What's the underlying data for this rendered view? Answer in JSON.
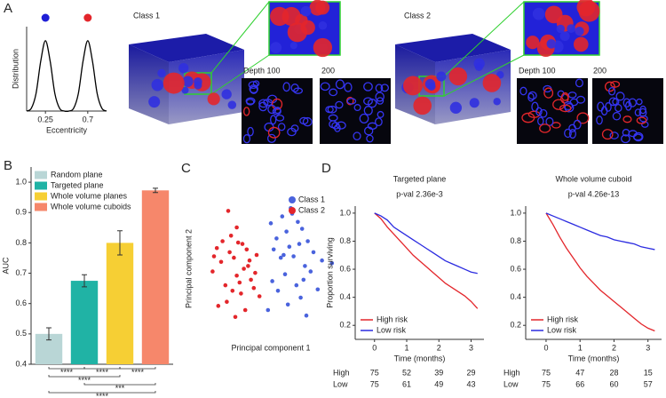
{
  "panel_labels": [
    "A",
    "B",
    "C",
    "D"
  ],
  "panel_a": {
    "classes": [
      {
        "title": "Class 1",
        "depths": [
          "Depth 100",
          "200"
        ]
      },
      {
        "title": "Class 2",
        "depths": [
          "Depth 100",
          "200"
        ]
      }
    ]
  },
  "chart_data": [
    {
      "type": "line",
      "smooth": true,
      "xlabel": "Eccentricity",
      "ylabel": "Distribution",
      "x": [
        0.05,
        0.1,
        0.15,
        0.2,
        0.25,
        0.3,
        0.35,
        0.4,
        0.45,
        0.5,
        0.55,
        0.6,
        0.65,
        0.7,
        0.75,
        0.8,
        0.85,
        0.9
      ],
      "series": [
        {
          "color": "#000000",
          "values": [
            0,
            0.04,
            0.25,
            0.71,
            1,
            0.71,
            0.25,
            0.04,
            0,
            0,
            0.04,
            0.25,
            0.71,
            1,
            0.71,
            0.25,
            0.04,
            0
          ]
        }
      ],
      "peak_markers": [
        {
          "x": 0.25,
          "color": "#1f1fd6"
        },
        {
          "x": 0.7,
          "color": "#e3262b"
        }
      ],
      "xlim": [
        0.05,
        0.9
      ],
      "ylim": [
        0,
        1.2
      ],
      "xticks": [
        0.25,
        0.7
      ]
    },
    {
      "type": "bar",
      "ylabel": "AUC",
      "categories": [
        "Random plane",
        "Targeted plane",
        "Whole volume planes",
        "Whole volume cuboids"
      ],
      "values": [
        0.5,
        0.675,
        0.8,
        0.973
      ],
      "errors": [
        0.02,
        0.02,
        0.04,
        0.007
      ],
      "colors": [
        "#b9d6d6",
        "#20b3a5",
        "#f6cf34",
        "#f6876b"
      ],
      "ylim": [
        0.4,
        1.05
      ],
      "yticks": [
        0.4,
        0.5,
        0.6,
        0.7,
        0.8,
        0.9,
        {
          "value": 1,
          "label": "1.0"
        }
      ],
      "significance": [
        {
          "pair": [
            0,
            1
          ],
          "label": "****"
        },
        {
          "pair": [
            1,
            2
          ],
          "label": "****"
        },
        {
          "pair": [
            2,
            3
          ],
          "label": "****"
        },
        {
          "pair": [
            0,
            2
          ],
          "label": "****"
        },
        {
          "pair": [
            1,
            3
          ],
          "label": "***"
        },
        {
          "pair": [
            0,
            3
          ],
          "label": "****"
        }
      ]
    },
    {
      "type": "scatter",
      "xlabel": "Principal component 1",
      "ylabel": "Principal component 2",
      "xlim": [
        0,
        10
      ],
      "ylim": [
        0,
        10
      ],
      "legend": "upper right",
      "series": [
        {
          "name": "Class 1",
          "color": "#4a63dd",
          "x": [
            5.0,
            5.8,
            6.5,
            7.2,
            5.4,
            6.1,
            6.9,
            7.6,
            5.2,
            6.3,
            7.0,
            8.0,
            5.7,
            6.6,
            7.4,
            8.6,
            6.0,
            5.1,
            7.8,
            6.8,
            5.5,
            7.1,
            8.3,
            6.2,
            4.8,
            7.5,
            9.3,
            6.4,
            5.9,
            7.3
          ],
          "values": [
            8.3,
            8.8,
            9.0,
            7.9,
            7.2,
            7.7,
            8.4,
            7.0,
            6.4,
            6.6,
            6.8,
            6.2,
            5.8,
            5.9,
            5.2,
            5.6,
            4.6,
            4.1,
            4.8,
            3.8,
            3.4,
            2.9,
            3.5,
            2.4,
            2.0,
            1.6,
            5.4,
            9.4,
            6.0,
            4.2
          ]
        },
        {
          "name": "Class 2",
          "color": "#e3262b",
          "x": [
            2.1,
            1.5,
            3.0,
            2.6,
            1.8,
            3.4,
            2.2,
            4.0,
            1.2,
            2.9,
            3.6,
            2.4,
            1.9,
            3.2,
            2.7,
            0.9,
            3.8,
            2.0,
            3.1,
            2.5,
            1.6,
            3.5,
            2.8,
            4.2,
            1.3,
            2.3,
            3.3,
            1.0,
            2.6,
            3.9
          ],
          "values": [
            6.2,
            5.5,
            6.8,
            4.5,
            3.8,
            5.2,
            7.4,
            6.0,
            6.5,
            3.2,
            4.2,
            5.8,
            2.6,
            2.0,
            6.9,
            4.8,
            3.6,
            9.2,
            5.0,
            1.5,
            7.0,
            5.6,
            4.0,
            3.0,
            2.3,
            3.4,
            6.4,
            5.9,
            8.0,
            4.7
          ]
        }
      ]
    },
    {
      "type": "line",
      "title": "Targeted plane",
      "subtitle": "p-val 2.36e-3",
      "xlabel": "Time (months)",
      "ylabel": "Proportion surviving",
      "legend": "lower left",
      "x": [
        0,
        0.2,
        0.4,
        0.6,
        0.8,
        1,
        1.2,
        1.4,
        1.6,
        1.8,
        2,
        2.2,
        2.4,
        2.6,
        2.8,
        3,
        3.2
      ],
      "series": [
        {
          "name": "High risk",
          "color": "#e3262b",
          "values": [
            1,
            0.96,
            0.9,
            0.85,
            0.8,
            0.75,
            0.7,
            0.66,
            0.62,
            0.58,
            0.54,
            0.5,
            0.47,
            0.44,
            0.41,
            0.37,
            0.32
          ]
        },
        {
          "name": "Low risk",
          "color": "#2b2be0",
          "values": [
            1,
            0.98,
            0.95,
            0.9,
            0.87,
            0.84,
            0.81,
            0.78,
            0.75,
            0.72,
            0.69,
            0.66,
            0.64,
            0.62,
            0.6,
            0.58,
            0.57
          ]
        }
      ],
      "xlim": [
        -0.6,
        3.4
      ],
      "ylim": [
        0.1,
        1.05
      ],
      "xticks": [
        0,
        1,
        2,
        3
      ],
      "yticks": [
        0.2,
        0.4,
        0.6,
        0.8,
        {
          "value": 1,
          "label": "1.0"
        }
      ],
      "risk_table": [
        {
          "label": "High",
          "counts": [
            75,
            52,
            39,
            29
          ]
        },
        {
          "label": "Low",
          "counts": [
            75,
            61,
            49,
            43
          ]
        }
      ]
    },
    {
      "type": "line",
      "title": "Whole volume cuboid",
      "subtitle": "p-val 4.26e-13",
      "xlabel": "Time (months)",
      "legend": "lower left",
      "x": [
        0,
        0.2,
        0.4,
        0.6,
        0.8,
        1,
        1.2,
        1.4,
        1.6,
        1.8,
        2,
        2.2,
        2.4,
        2.6,
        2.8,
        3,
        3.2
      ],
      "series": [
        {
          "name": "High risk",
          "color": "#e3262b",
          "values": [
            1,
            0.92,
            0.83,
            0.75,
            0.68,
            0.61,
            0.55,
            0.5,
            0.45,
            0.41,
            0.37,
            0.33,
            0.29,
            0.25,
            0.21,
            0.18,
            0.16
          ]
        },
        {
          "name": "Low risk",
          "color": "#2b2be0",
          "values": [
            1,
            0.98,
            0.96,
            0.94,
            0.92,
            0.9,
            0.88,
            0.86,
            0.84,
            0.83,
            0.81,
            0.8,
            0.79,
            0.78,
            0.76,
            0.75,
            0.74
          ]
        }
      ],
      "xlim": [
        -0.6,
        3.4
      ],
      "ylim": [
        0.1,
        1.05
      ],
      "xticks": [
        0,
        1,
        2,
        3
      ],
      "yticks": [
        0.2,
        0.4,
        0.6,
        0.8,
        {
          "value": 1,
          "label": "1.0"
        }
      ],
      "risk_table": [
        {
          "label": "High",
          "counts": [
            75,
            47,
            28,
            15
          ]
        },
        {
          "label": "Low",
          "counts": [
            75,
            66,
            60,
            57
          ]
        }
      ]
    }
  ]
}
